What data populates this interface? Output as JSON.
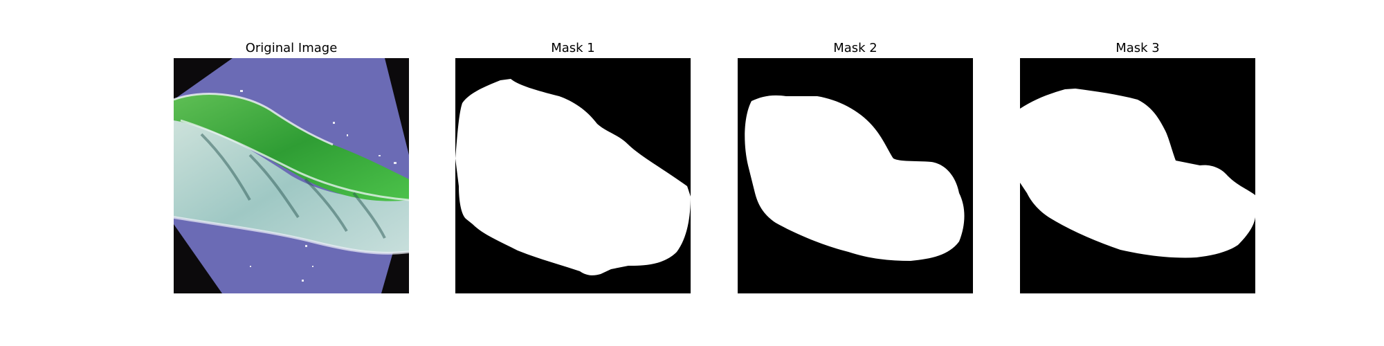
{
  "figure": {
    "panels": [
      {
        "title": "Original Image"
      },
      {
        "title": "Mask 1"
      },
      {
        "title": "Mask 2"
      },
      {
        "title": "Mask 3"
      }
    ]
  },
  "colors": {
    "background": "#ffffff",
    "mask_background": "#000000",
    "mask_foreground": "#ffffff",
    "photo_backdrop": "#6f6fb8",
    "leaf_green": "#3fae3a",
    "leaf_pale": "#a9cfd0"
  }
}
